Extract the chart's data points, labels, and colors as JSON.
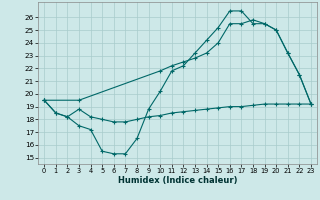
{
  "bg_color": "#cde8e8",
  "grid_color": "#a8cccc",
  "line_color": "#006868",
  "xlabel": "Humidex (Indice chaleur)",
  "xlim": [
    -0.5,
    23.5
  ],
  "ylim": [
    14.5,
    27.2
  ],
  "yticks": [
    15,
    16,
    17,
    18,
    19,
    20,
    21,
    22,
    23,
    24,
    25,
    26
  ],
  "xticks": [
    0,
    1,
    2,
    3,
    4,
    5,
    6,
    7,
    8,
    9,
    10,
    11,
    12,
    13,
    14,
    15,
    16,
    17,
    18,
    19,
    20,
    21,
    22,
    23
  ],
  "line1_x": [
    0,
    1,
    2,
    3,
    4,
    5,
    6,
    7,
    8,
    9,
    10,
    11,
    12,
    13,
    14,
    15,
    16,
    17,
    18,
    19,
    20,
    21,
    22,
    23
  ],
  "line1_y": [
    19.5,
    18.5,
    18.2,
    17.5,
    17.2,
    15.5,
    15.3,
    15.3,
    16.5,
    18.8,
    20.2,
    21.8,
    22.2,
    23.2,
    24.2,
    25.2,
    26.5,
    26.5,
    25.5,
    25.5,
    25.0,
    23.2,
    21.5,
    19.2
  ],
  "line2_x": [
    0,
    3,
    10,
    11,
    12,
    13,
    14,
    15,
    16,
    17,
    18,
    19,
    20,
    21,
    22,
    23
  ],
  "line2_y": [
    19.5,
    19.5,
    21.8,
    22.2,
    22.5,
    22.8,
    23.2,
    24.0,
    25.5,
    25.5,
    25.8,
    25.5,
    25.0,
    23.2,
    21.5,
    19.2
  ],
  "line3_x": [
    0,
    1,
    2,
    3,
    4,
    5,
    6,
    7,
    8,
    9,
    10,
    11,
    12,
    13,
    14,
    15,
    16,
    17,
    18,
    19,
    20,
    21,
    22,
    23
  ],
  "line3_y": [
    19.5,
    18.5,
    18.2,
    18.8,
    18.2,
    18.0,
    17.8,
    17.8,
    18.0,
    18.2,
    18.3,
    18.5,
    18.6,
    18.7,
    18.8,
    18.9,
    19.0,
    19.0,
    19.1,
    19.2,
    19.2,
    19.2,
    19.2,
    19.2
  ]
}
